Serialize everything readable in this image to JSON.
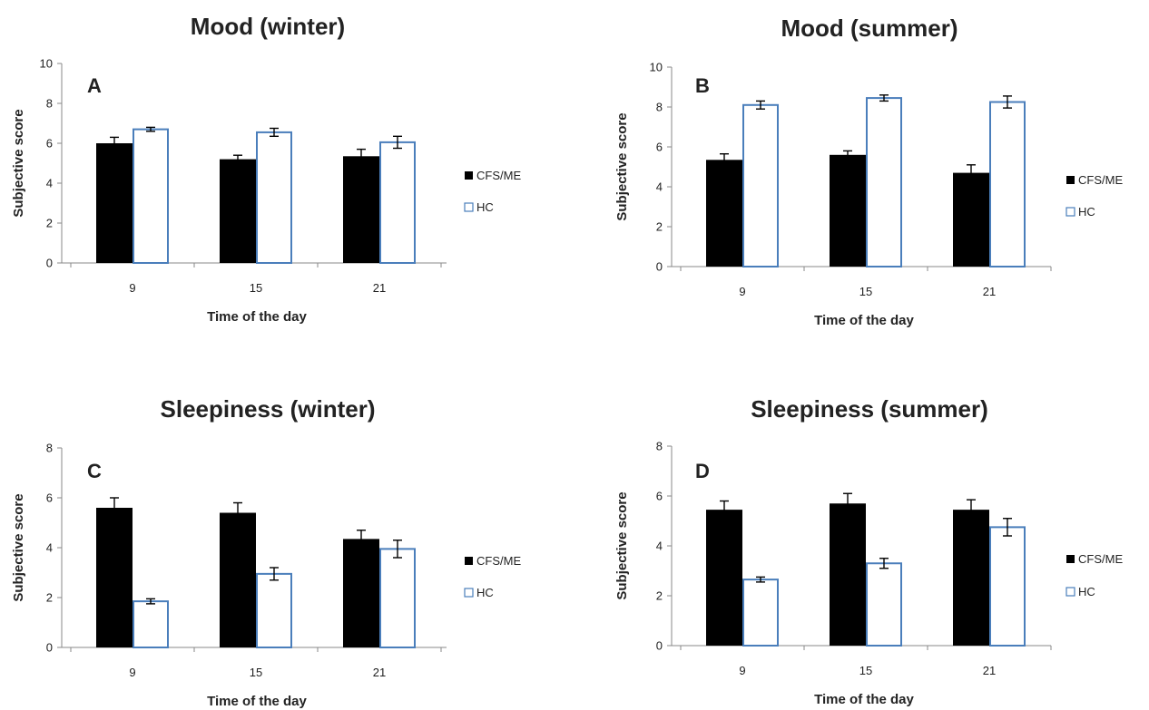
{
  "chart_data": [
    {
      "type": "bar",
      "title": "Mood (winter)",
      "panel_label": "A",
      "xlabel": "Time of the day",
      "ylabel": "Subjective score",
      "categories": [
        "9",
        "15",
        "21"
      ],
      "ylim": [
        0,
        10
      ],
      "yticks": [
        "0",
        "2",
        "4",
        "6",
        "8",
        "10"
      ],
      "legend_position": "right",
      "series": [
        {
          "name": "CFS/ME",
          "color": "#000000",
          "fill": "solid",
          "values": [
            6.0,
            5.2,
            5.35
          ],
          "errors": [
            0.3,
            0.2,
            0.35
          ]
        },
        {
          "name": "HC",
          "color": "#4a7ebb",
          "fill": "hollow",
          "values": [
            6.7,
            6.55,
            6.05
          ],
          "errors": [
            0.1,
            0.2,
            0.3
          ]
        }
      ]
    },
    {
      "type": "bar",
      "title": "Mood (summer)",
      "panel_label": "B",
      "xlabel": "Time of the day",
      "ylabel": "Subjective score",
      "categories": [
        "9",
        "15",
        "21"
      ],
      "ylim": [
        0,
        10
      ],
      "yticks": [
        "0",
        "2",
        "4",
        "6",
        "8",
        "10"
      ],
      "legend_position": "right",
      "series": [
        {
          "name": "CFS/ME",
          "color": "#000000",
          "fill": "solid",
          "values": [
            5.35,
            5.6,
            4.7
          ],
          "errors": [
            0.3,
            0.2,
            0.4
          ]
        },
        {
          "name": "HC",
          "color": "#4a7ebb",
          "fill": "hollow",
          "values": [
            8.1,
            8.45,
            8.25
          ],
          "errors": [
            0.2,
            0.15,
            0.3
          ]
        }
      ]
    },
    {
      "type": "bar",
      "title": "Sleepiness (winter)",
      "panel_label": "C",
      "xlabel": "Time of the day",
      "ylabel": "Subjective score",
      "categories": [
        "9",
        "15",
        "21"
      ],
      "ylim": [
        0,
        8
      ],
      "yticks": [
        "0",
        "2",
        "4",
        "6",
        "8"
      ],
      "legend_position": "right",
      "series": [
        {
          "name": "CFS/ME",
          "color": "#000000",
          "fill": "solid",
          "values": [
            5.6,
            5.4,
            4.35
          ],
          "errors": [
            0.4,
            0.4,
            0.35
          ]
        },
        {
          "name": "HC",
          "color": "#4a7ebb",
          "fill": "hollow",
          "values": [
            1.85,
            2.95,
            3.95
          ],
          "errors": [
            0.1,
            0.25,
            0.35
          ]
        }
      ]
    },
    {
      "type": "bar",
      "title": "Sleepiness (summer)",
      "panel_label": "D",
      "xlabel": "Time of the day",
      "ylabel": "Subjective score",
      "categories": [
        "9",
        "15",
        "21"
      ],
      "ylim": [
        0,
        8
      ],
      "yticks": [
        "0",
        "2",
        "4",
        "6",
        "8"
      ],
      "legend_position": "right",
      "series": [
        {
          "name": "CFS/ME",
          "color": "#000000",
          "fill": "solid",
          "values": [
            5.45,
            5.7,
            5.45
          ],
          "errors": [
            0.35,
            0.4,
            0.4
          ]
        },
        {
          "name": "HC",
          "color": "#4a7ebb",
          "fill": "hollow",
          "values": [
            2.65,
            3.3,
            4.75
          ],
          "errors": [
            0.1,
            0.2,
            0.35
          ]
        }
      ]
    }
  ]
}
